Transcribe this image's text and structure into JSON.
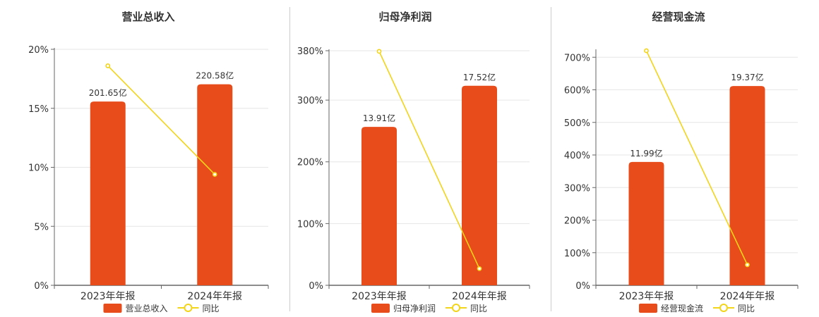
{
  "colors": {
    "bar": "#E84C1B",
    "line": "#F2D419",
    "grid": "#e6e6e6",
    "axis": "#666666",
    "divider": "#cccccc"
  },
  "chart_data": [
    {
      "type": "bar",
      "title": "营业总收入",
      "categories": [
        "2023年年报",
        "2024年年报"
      ],
      "bar_series": {
        "name": "营业总收入",
        "values": [
          201.65,
          220.58
        ],
        "labels": [
          "201.65亿",
          "220.58亿"
        ]
      },
      "line_series": {
        "name": "同比",
        "values": [
          18.6,
          9.4
        ]
      },
      "y_ticks": [
        "0%",
        "5%",
        "10%",
        "15%",
        "20%"
      ],
      "ylim": [
        0,
        20
      ],
      "bar_scale_max": 258.9,
      "grid": true,
      "legend": "bottom"
    },
    {
      "type": "bar",
      "title": "归母净利润",
      "categories": [
        "2023年年报",
        "2024年年报"
      ],
      "bar_series": {
        "name": "归母净利润",
        "values": [
          13.91,
          17.52
        ],
        "labels": [
          "13.91亿",
          "17.52亿"
        ]
      },
      "line_series": {
        "name": "同比",
        "values": [
          379,
          27
        ]
      },
      "y_ticks": [
        "0%",
        "100%",
        "200%",
        "300%",
        "380%"
      ],
      "y_tick_values": [
        0,
        100,
        200,
        300,
        380
      ],
      "ylim": [
        0,
        380
      ],
      "bar_scale_max": 20.6,
      "grid": true,
      "legend": "bottom"
    },
    {
      "type": "bar",
      "title": "经营现金流",
      "categories": [
        "2023年年报",
        "2024年年报"
      ],
      "bar_series": {
        "name": "经营现金流",
        "values": [
          11.99,
          19.37
        ],
        "labels": [
          "11.99亿",
          "19.37亿"
        ]
      },
      "line_series": {
        "name": "同比",
        "values": [
          720,
          63
        ]
      },
      "y_ticks": [
        "0%",
        "100%",
        "200%",
        "300%",
        "400%",
        "500%",
        "600%",
        "700%"
      ],
      "ylim": [
        0,
        720
      ],
      "bar_scale_max": 22.8,
      "grid": true,
      "legend": "bottom"
    }
  ]
}
